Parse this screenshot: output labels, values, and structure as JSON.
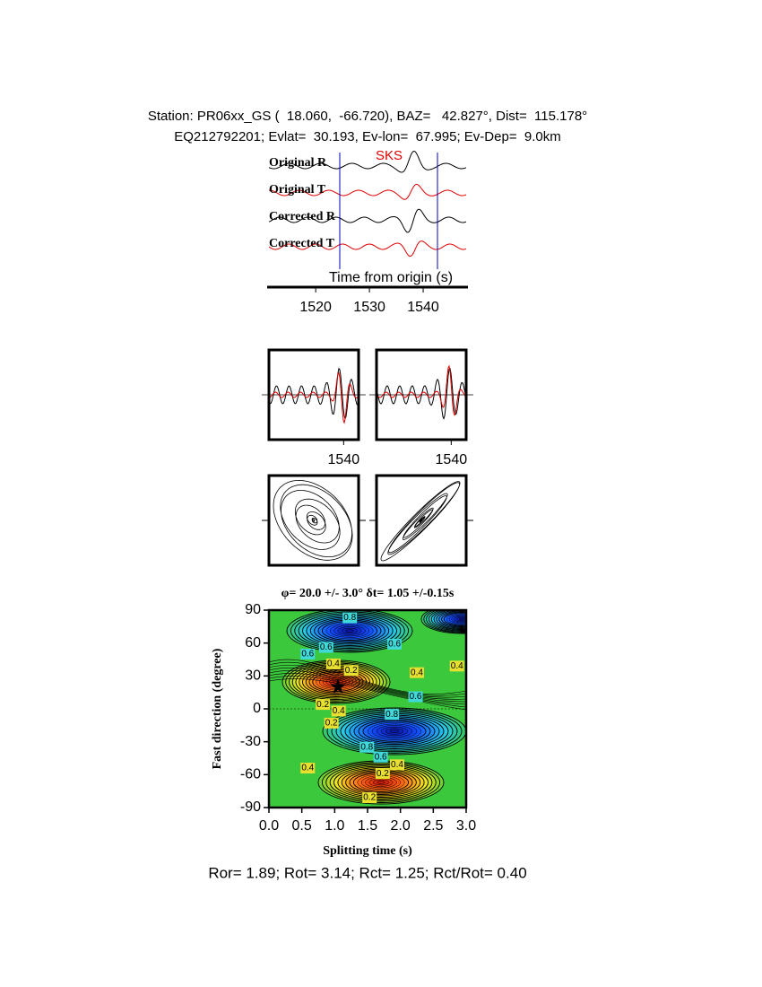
{
  "header": {
    "line1": "Station: PR06xx_GS (  18.060,  -66.720), BAZ=   42.827°, Dist=  115.178°",
    "line2": "EQ212792201; Evlat=  30.193, Ev-lon=  67.995; Ev-Dep=  9.0km"
  },
  "chart_data": [
    {
      "type": "waveform",
      "phase_label": "SKS",
      "series": [
        {
          "name": "Original R",
          "color": "#000000"
        },
        {
          "name": "Original T",
          "color": "#e00000"
        },
        {
          "name": "Corrected R",
          "color": "#000000"
        },
        {
          "name": "Corrected T",
          "color": "#e00000"
        }
      ],
      "xlabel": "Time from origin (s)",
      "xlim": [
        1511.3,
        1548
      ],
      "xticks": [
        1520,
        1530,
        1540
      ]
    },
    {
      "type": "overlay",
      "xlim": [
        1525,
        1543
      ],
      "xticks": [
        1540
      ]
    },
    {
      "type": "overlay",
      "xlim": [
        1525,
        1543
      ],
      "xticks": [
        1540
      ]
    },
    {
      "type": "particle-motion"
    },
    {
      "type": "particle-motion"
    },
    {
      "type": "contour",
      "title": "φ= 20.0 +/- 3.0° δt= 1.05 +/-0.15s",
      "xlabel": "Splitting time (s)",
      "ylabel": "Fast direction (degree)",
      "xlim": [
        0,
        3
      ],
      "xticks": [
        {
          "value": 0,
          "label": "0.0"
        },
        0.5,
        {
          "value": 1,
          "label": "1.0"
        },
        1.5,
        {
          "value": 2,
          "label": "2.0"
        },
        2.5,
        {
          "value": 3,
          "label": "3.0"
        }
      ],
      "ylim": [
        -90,
        90
      ],
      "yticks": [
        -90,
        -60,
        -30,
        0,
        30,
        60,
        90
      ],
      "best": {
        "x": 1.05,
        "y": 20
      },
      "labels": [
        {
          "x": 1.23,
          "y": 83,
          "value": 0.8
        },
        {
          "x": 0.87,
          "y": 56,
          "value": 0.6
        },
        {
          "x": 0.59,
          "y": 50,
          "value": 0.6
        },
        {
          "x": 0.98,
          "y": 41,
          "value": 0.4
        },
        {
          "x": 1.25,
          "y": 35,
          "value": 0.2
        },
        {
          "x": 1.91,
          "y": 59,
          "value": 0.6
        },
        {
          "x": 2.25,
          "y": 33,
          "value": 0.4
        },
        {
          "x": 2.86,
          "y": 39,
          "value": 0.4
        },
        {
          "x": 2.23,
          "y": 11,
          "value": 0.6
        },
        {
          "x": 0.82,
          "y": 4,
          "value": 0.2
        },
        {
          "x": 1.06,
          "y": -2,
          "value": 0.4
        },
        {
          "x": 0.95,
          "y": -13,
          "value": 0.2
        },
        {
          "x": 1.87,
          "y": -5,
          "value": 0.8
        },
        {
          "x": 1.49,
          "y": -35,
          "value": 0.8
        },
        {
          "x": 1.7,
          "y": -44,
          "value": 0.6
        },
        {
          "x": 1.95,
          "y": -51,
          "value": 0.4
        },
        {
          "x": 1.73,
          "y": -59,
          "value": 0.2
        },
        {
          "x": 0.59,
          "y": -54,
          "value": 0.4
        },
        {
          "x": 1.53,
          "y": -81,
          "value": 0.2
        }
      ]
    }
  ],
  "footer": "Ror= 1.89; Rot= 3.14; Rct= 1.25; Rct/Rot= 0.40"
}
